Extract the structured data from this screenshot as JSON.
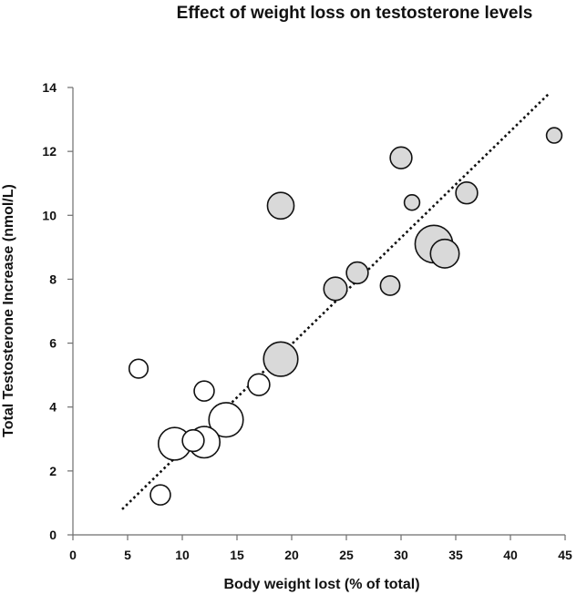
{
  "chart_data": {
    "type": "scatter",
    "title": "Effect of weight loss on testosterone levels",
    "xlabel": "Body weight lost (% of total)",
    "ylabel": "Total Testosterone Increase (nmol/L)",
    "xlim": [
      0,
      45
    ],
    "ylim": [
      0,
      14
    ],
    "xticks": [
      0,
      5,
      10,
      15,
      20,
      25,
      30,
      35,
      40,
      45
    ],
    "yticks": [
      0,
      2,
      4,
      6,
      8,
      10,
      12,
      14
    ],
    "grid": false,
    "legend": "none",
    "colors": {
      "filled": "#d9d9d9",
      "open": "#ffffff",
      "outline": "#111111",
      "axis": "#6e6e6e"
    },
    "series": [
      {
        "name": "filled bubbles",
        "fill": "filled",
        "points": [
          {
            "x": 19,
            "y": 10.3,
            "size": 3
          },
          {
            "x": 30,
            "y": 11.8,
            "size": 2
          },
          {
            "x": 31,
            "y": 10.4,
            "size": 1
          },
          {
            "x": 36,
            "y": 10.7,
            "size": 2
          },
          {
            "x": 44,
            "y": 12.5,
            "size": 1
          },
          {
            "x": 33,
            "y": 9.1,
            "size": 6
          },
          {
            "x": 34,
            "y": 8.8,
            "size": 3.5
          },
          {
            "x": 26,
            "y": 8.2,
            "size": 2
          },
          {
            "x": 24,
            "y": 7.7,
            "size": 2.3
          },
          {
            "x": 29,
            "y": 7.8,
            "size": 1.6
          },
          {
            "x": 19,
            "y": 5.5,
            "size": 5
          }
        ]
      },
      {
        "name": "open bubbles",
        "fill": "open",
        "points": [
          {
            "x": 6,
            "y": 5.2,
            "size": 1.5
          },
          {
            "x": 12,
            "y": 4.5,
            "size": 1.7
          },
          {
            "x": 17,
            "y": 4.7,
            "size": 2
          },
          {
            "x": 14,
            "y": 3.6,
            "size": 5
          },
          {
            "x": 9.3,
            "y": 2.85,
            "size": 4.5
          },
          {
            "x": 11,
            "y": 2.95,
            "size": 2
          },
          {
            "x": 12,
            "y": 2.9,
            "size": 4.2
          },
          {
            "x": 8,
            "y": 1.25,
            "size": 1.7
          }
        ]
      }
    ],
    "trendline": {
      "style": "dotted",
      "from": {
        "x": 4.5,
        "y": 0.8
      },
      "to": {
        "x": 43.5,
        "y": 13.8
      }
    }
  }
}
